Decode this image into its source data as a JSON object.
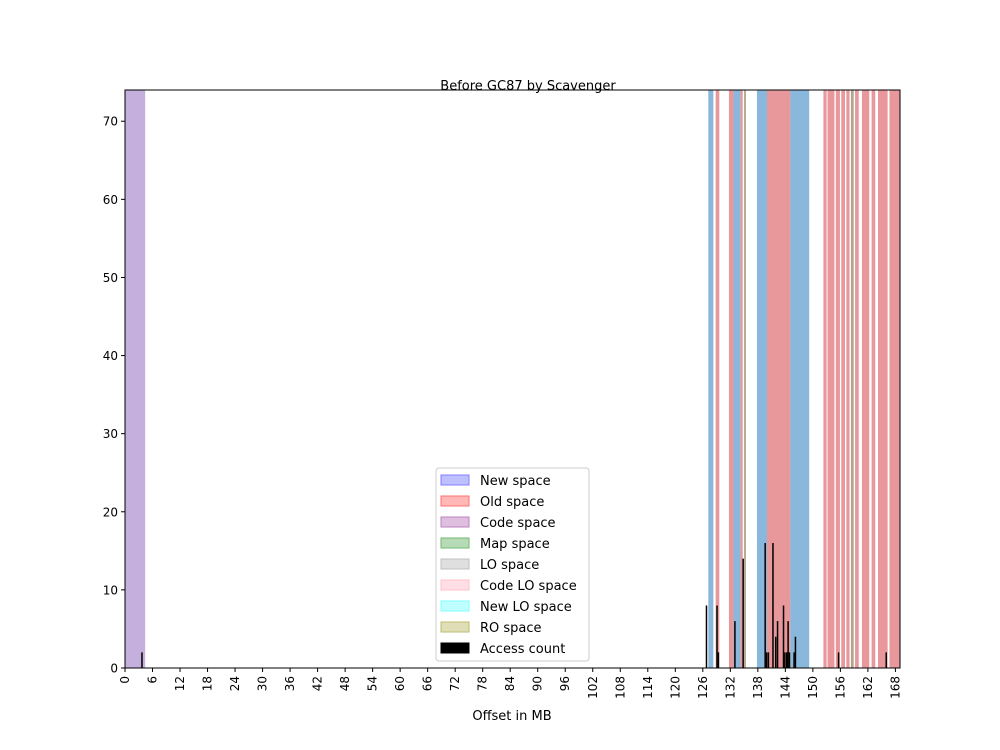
{
  "chart_data": {
    "type": "bar",
    "title": "Before GC87 by Scavenger",
    "xlabel": "Offset in MB",
    "ylabel": "",
    "xlim": [
      0,
      169
    ],
    "ylim": [
      0,
      74
    ],
    "grid": false,
    "legend_position": "bottom-center",
    "xticks": [
      0,
      6,
      12,
      18,
      24,
      30,
      36,
      42,
      48,
      54,
      60,
      66,
      72,
      78,
      84,
      90,
      96,
      102,
      108,
      114,
      120,
      126,
      132,
      138,
      144,
      150,
      156,
      162,
      168
    ],
    "yticks": [
      0,
      10,
      20,
      30,
      40,
      50,
      60,
      70
    ],
    "legend": [
      {
        "name": "New space",
        "color": "#8080ff"
      },
      {
        "name": "Old space",
        "color": "#ff7070"
      },
      {
        "name": "Code space",
        "color": "#bf80bf"
      },
      {
        "name": "Map space",
        "color": "#70b870"
      },
      {
        "name": "LO space",
        "color": "#c0c0c0"
      },
      {
        "name": "Code LO space",
        "color": "#ffc0cb"
      },
      {
        "name": "New LO space",
        "color": "#80ffff"
      },
      {
        "name": "RO space",
        "color": "#bdbd70"
      },
      {
        "name": "Access count",
        "color": "#000000"
      }
    ],
    "space_spans": [
      {
        "space": "Code space",
        "start": 0,
        "end": 4.4,
        "color": "#c5b0dd"
      },
      {
        "space": "New space",
        "start": 127.2,
        "end": 128.3,
        "color": "#8ab8dc"
      },
      {
        "space": "Old space",
        "start": 128.8,
        "end": 129.6,
        "color": "#e8979a"
      },
      {
        "space": "Old space",
        "start": 131.7,
        "end": 132.7,
        "color": "#e8979a"
      },
      {
        "space": "New space",
        "start": 132.7,
        "end": 134.2,
        "color": "#8ab8dc"
      },
      {
        "space": "Old space",
        "start": 134.2,
        "end": 134.7,
        "color": "#e8979a"
      },
      {
        "space": "Map space",
        "start": 135.0,
        "end": 135.4,
        "color": "#b0a78a"
      },
      {
        "space": "New space",
        "start": 137.8,
        "end": 140.0,
        "color": "#8ab8dc"
      },
      {
        "space": "Old space",
        "start": 140.0,
        "end": 145.1,
        "color": "#e8979a"
      },
      {
        "space": "New space",
        "start": 145.1,
        "end": 149.2,
        "color": "#8ab8dc"
      },
      {
        "space": "Old space",
        "start": 152.3,
        "end": 153.0,
        "color": "#e8979a"
      },
      {
        "space": "Old space",
        "start": 153.2,
        "end": 154.7,
        "color": "#e8979a"
      },
      {
        "space": "Old space",
        "start": 155.0,
        "end": 155.9,
        "color": "#e8979a"
      },
      {
        "space": "Old space",
        "start": 156.2,
        "end": 157.0,
        "color": "#e8979a"
      },
      {
        "space": "Old space",
        "start": 157.3,
        "end": 158.0,
        "color": "#e8979a"
      },
      {
        "space": "Map space",
        "start": 158.3,
        "end": 158.9,
        "color": "#b0a78a"
      },
      {
        "space": "Old space",
        "start": 159.2,
        "end": 160.0,
        "color": "#e8979a"
      },
      {
        "space": "Old space",
        "start": 160.7,
        "end": 162.3,
        "color": "#e8979a"
      },
      {
        "space": "Old space",
        "start": 162.8,
        "end": 163.6,
        "color": "#e8979a"
      },
      {
        "space": "Old space",
        "start": 164.2,
        "end": 166.3,
        "color": "#e8979a"
      },
      {
        "space": "Old space",
        "start": 166.7,
        "end": 169.0,
        "color": "#e8979a"
      }
    ],
    "access_counts": [
      {
        "x": 3.7,
        "value": 2
      },
      {
        "x": 126.8,
        "value": 8
      },
      {
        "x": 129.1,
        "value": 8
      },
      {
        "x": 129.4,
        "value": 2
      },
      {
        "x": 133.0,
        "value": 6
      },
      {
        "x": 134.8,
        "value": 14
      },
      {
        "x": 139.6,
        "value": 16
      },
      {
        "x": 139.9,
        "value": 2
      },
      {
        "x": 140.3,
        "value": 2
      },
      {
        "x": 141.3,
        "value": 16
      },
      {
        "x": 141.9,
        "value": 4
      },
      {
        "x": 142.3,
        "value": 6
      },
      {
        "x": 143.6,
        "value": 8
      },
      {
        "x": 143.9,
        "value": 2
      },
      {
        "x": 144.3,
        "value": 2
      },
      {
        "x": 144.6,
        "value": 6
      },
      {
        "x": 144.9,
        "value": 2
      },
      {
        "x": 145.9,
        "value": 2
      },
      {
        "x": 146.2,
        "value": 4
      },
      {
        "x": 155.6,
        "value": 2
      },
      {
        "x": 166.0,
        "value": 2
      }
    ]
  }
}
